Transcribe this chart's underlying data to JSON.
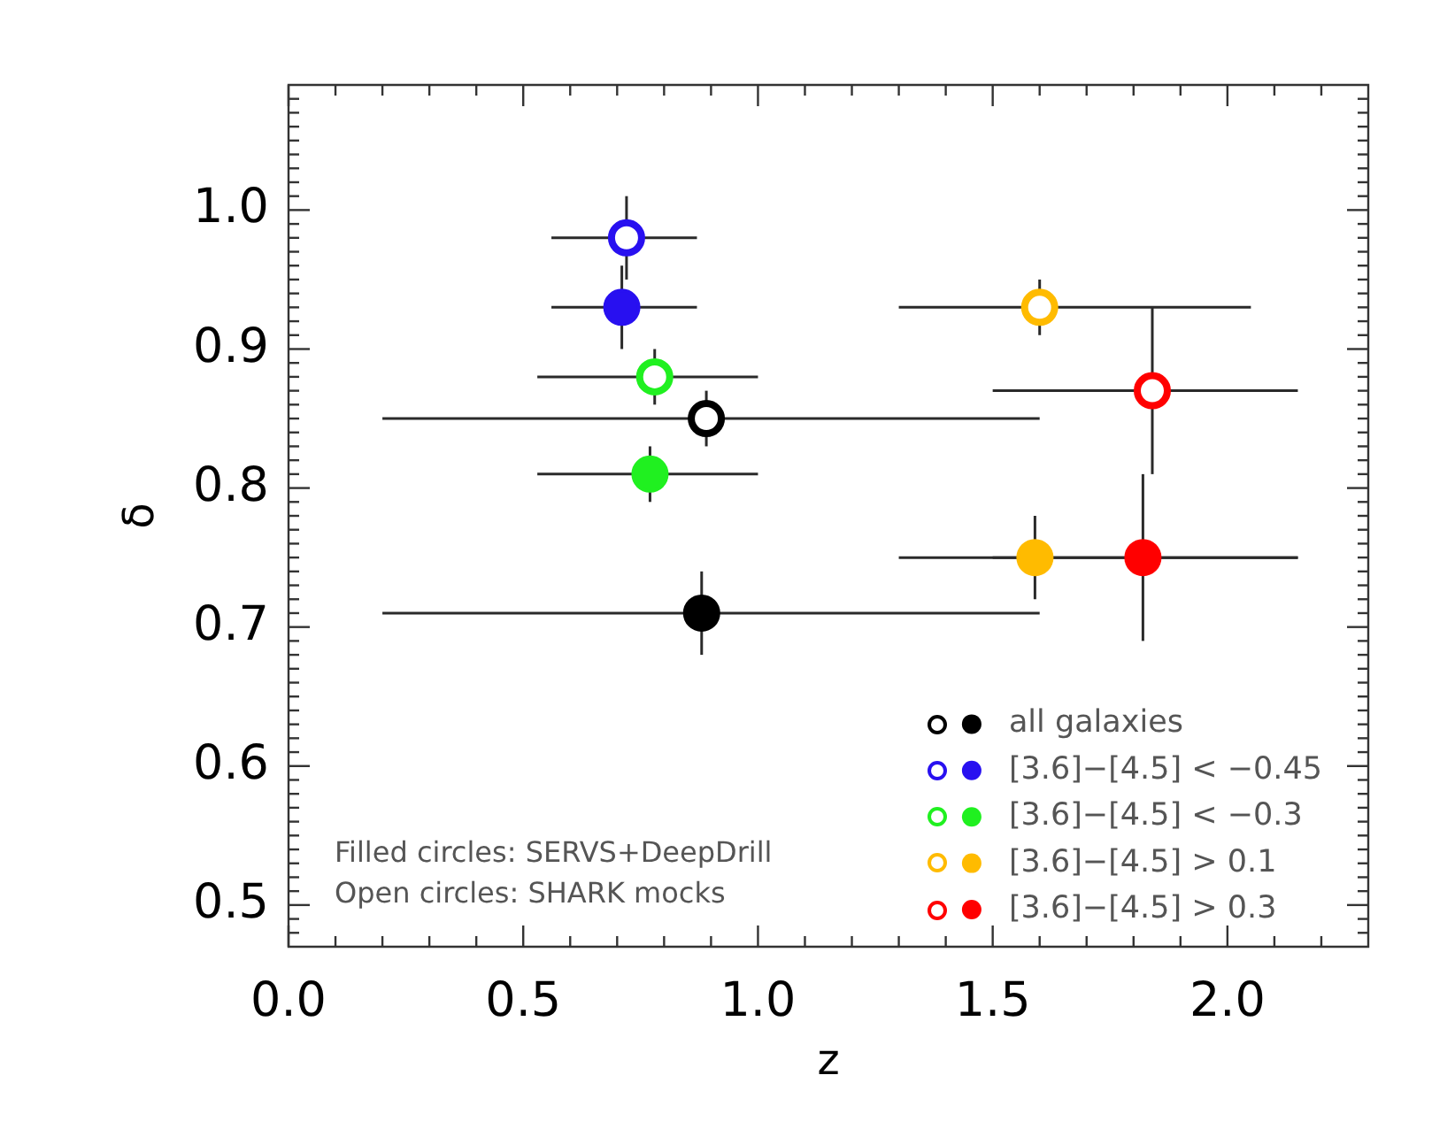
{
  "chart_data": {
    "type": "scatter",
    "xlabel": "z",
    "ylabel": "δ",
    "xlim": [
      0,
      2.3
    ],
    "ylim": [
      0.47,
      1.09
    ],
    "xticks": [
      {
        "value": 0,
        "label": "0.0"
      },
      {
        "value": 0.1,
        "label": null
      },
      {
        "value": 0.2,
        "label": null
      },
      {
        "value": 0.3,
        "label": null
      },
      {
        "value": 0.4,
        "label": null
      },
      0.5,
      {
        "value": 0.6,
        "label": null
      },
      {
        "value": 0.7,
        "label": null
      },
      {
        "value": 0.8,
        "label": null
      },
      {
        "value": 0.9,
        "label": null
      },
      {
        "value": 1,
        "label": "1.0"
      },
      {
        "value": 1.1,
        "label": null
      },
      {
        "value": 1.2,
        "label": null
      },
      {
        "value": 1.3,
        "label": null
      },
      {
        "value": 1.4,
        "label": null
      },
      1.5,
      {
        "value": 1.6,
        "label": null
      },
      {
        "value": 1.7,
        "label": null
      },
      {
        "value": 1.8,
        "label": null
      },
      {
        "value": 1.9,
        "label": null
      },
      {
        "value": 2,
        "label": "2.0"
      },
      {
        "value": 2.1,
        "label": null
      },
      {
        "value": 2.2,
        "label": null
      }
    ],
    "yticks": [
      {
        "value": 0.48,
        "label": null
      },
      {
        "value": 0.49,
        "label": null
      },
      0.5,
      {
        "value": 0.51,
        "label": null
      },
      {
        "value": 0.52,
        "label": null
      },
      {
        "value": 0.53,
        "label": null
      },
      {
        "value": 0.54,
        "label": null
      },
      {
        "value": 0.55,
        "label": null
      },
      {
        "value": 0.56,
        "label": null
      },
      {
        "value": 0.57,
        "label": null
      },
      {
        "value": 0.58,
        "label": null
      },
      {
        "value": 0.59,
        "label": null
      },
      0.6,
      {
        "value": 0.61,
        "label": null
      },
      {
        "value": 0.62,
        "label": null
      },
      {
        "value": 0.63,
        "label": null
      },
      {
        "value": 0.64,
        "label": null
      },
      {
        "value": 0.65,
        "label": null
      },
      {
        "value": 0.66,
        "label": null
      },
      {
        "value": 0.67,
        "label": null
      },
      {
        "value": 0.68,
        "label": null
      },
      {
        "value": 0.69,
        "label": null
      },
      0.7,
      {
        "value": 0.71,
        "label": null
      },
      {
        "value": 0.72,
        "label": null
      },
      {
        "value": 0.73,
        "label": null
      },
      {
        "value": 0.74,
        "label": null
      },
      {
        "value": 0.75,
        "label": null
      },
      {
        "value": 0.76,
        "label": null
      },
      {
        "value": 0.77,
        "label": null
      },
      {
        "value": 0.78,
        "label": null
      },
      {
        "value": 0.79,
        "label": null
      },
      0.8,
      {
        "value": 0.81,
        "label": null
      },
      {
        "value": 0.82,
        "label": null
      },
      {
        "value": 0.83,
        "label": null
      },
      {
        "value": 0.84,
        "label": null
      },
      {
        "value": 0.85,
        "label": null
      },
      {
        "value": 0.86,
        "label": null
      },
      {
        "value": 0.87,
        "label": null
      },
      {
        "value": 0.88,
        "label": null
      },
      {
        "value": 0.89,
        "label": null
      },
      0.9,
      {
        "value": 0.91,
        "label": null
      },
      {
        "value": 0.92,
        "label": null
      },
      {
        "value": 0.93,
        "label": null
      },
      {
        "value": 0.94,
        "label": null
      },
      {
        "value": 0.95,
        "label": null
      },
      {
        "value": 0.96,
        "label": null
      },
      {
        "value": 0.97,
        "label": null
      },
      {
        "value": 0.98,
        "label": null
      },
      {
        "value": 0.99,
        "label": null
      },
      {
        "value": 1,
        "label": "1.0"
      },
      {
        "value": 1.01,
        "label": null
      },
      {
        "value": 1.02,
        "label": null
      },
      {
        "value": 1.03,
        "label": null
      },
      {
        "value": 1.04,
        "label": null
      },
      {
        "value": 1.05,
        "label": null
      },
      {
        "value": 1.06,
        "label": null
      },
      {
        "value": 1.07,
        "label": null
      },
      {
        "value": 1.08,
        "label": null
      }
    ],
    "marker": "circle",
    "legend": "bottom right",
    "annotations": [
      "Filled circles: SERVS+DeepDrill",
      "Open circles: SHARK mocks"
    ],
    "series": [
      {
        "color": "#000000",
        "marker": "circle-open",
        "x": [
          0.89
        ],
        "values": [
          0.85
        ],
        "errors": [
          0.02
        ],
        "xerrors": [
          [
            0.2,
            1.6
          ]
        ]
      },
      {
        "name": "all galaxies",
        "color": "#000000",
        "x": [
          0.88
        ],
        "values": [
          0.71
        ],
        "errors": [
          0.03
        ],
        "xerrors": [
          [
            0.2,
            1.6
          ]
        ]
      },
      {
        "color": "#2810f0",
        "marker": "circle-open",
        "x": [
          0.72
        ],
        "values": [
          0.98
        ],
        "errors": [
          0.03
        ],
        "xerrors": [
          [
            0.56,
            0.87
          ]
        ]
      },
      {
        "name": "[3.6]−[4.5] < −0.45",
        "color": "#2810f0",
        "x": [
          0.71
        ],
        "values": [
          0.93
        ],
        "errors": [
          0.03
        ],
        "xerrors": [
          [
            0.56,
            0.87
          ]
        ]
      },
      {
        "color": "#20f020",
        "marker": "circle-open",
        "x": [
          0.78
        ],
        "values": [
          0.88
        ],
        "errors": [
          0.02
        ],
        "xerrors": [
          [
            0.53,
            1.0
          ]
        ]
      },
      {
        "name": "[3.6]−[4.5] < −0.3",
        "color": "#20f020",
        "x": [
          0.77
        ],
        "values": [
          0.81
        ],
        "errors": [
          0.02
        ],
        "xerrors": [
          [
            0.53,
            1.0
          ]
        ]
      },
      {
        "color": "#ffbb00",
        "marker": "circle-open",
        "x": [
          1.6
        ],
        "values": [
          0.93
        ],
        "errors": [
          0.02
        ],
        "xerrors": [
          [
            1.3,
            2.05
          ]
        ]
      },
      {
        "name": "[3.6]−[4.5] > 0.1",
        "color": "#ffbb00",
        "x": [
          1.59
        ],
        "values": [
          0.75
        ],
        "errors": [
          0.03
        ],
        "xerrors": [
          [
            1.3,
            2.15
          ]
        ]
      },
      {
        "color": "#ff0000",
        "marker": "circle-open",
        "x": [
          1.84
        ],
        "values": [
          0.87
        ],
        "errors": [
          0.06
        ],
        "xerrors": [
          [
            1.5,
            2.15
          ]
        ]
      },
      {
        "name": "[3.6]−[4.5] > 0.3",
        "color": "#ff0000",
        "x": [
          1.82
        ],
        "values": [
          0.75
        ],
        "errors": [
          0.06
        ],
        "xerrors": [
          [
            1.5,
            2.15
          ]
        ]
      }
    ]
  }
}
